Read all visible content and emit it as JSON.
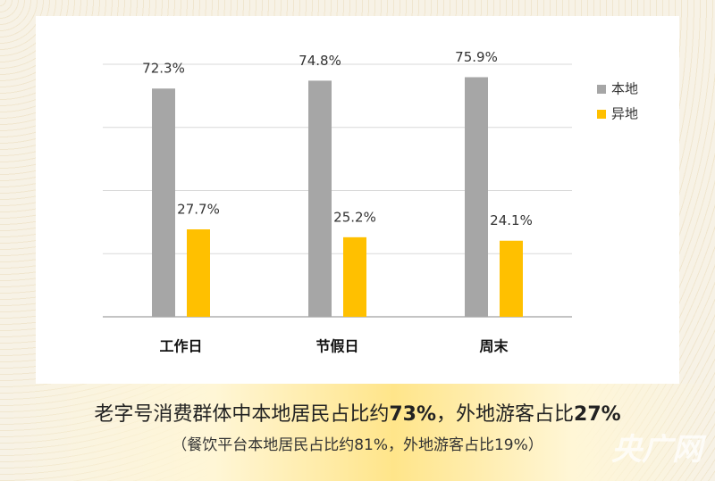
{
  "chart_data": {
    "type": "bar",
    "categories": [
      "工作日",
      "节假日",
      "周末"
    ],
    "series": [
      {
        "name": "本地",
        "color": "#a6a6a6",
        "values": [
          72.3,
          74.8,
          75.9
        ],
        "value_labels": [
          "72.3%",
          "74.8%",
          "75.9%"
        ]
      },
      {
        "name": "异地",
        "color": "#ffc000",
        "values": [
          27.7,
          25.2,
          24.1
        ],
        "value_labels": [
          "27.7%",
          "25.2%",
          "24.1%"
        ]
      }
    ],
    "ylim": [
      0,
      80
    ],
    "yticks": [
      0,
      20,
      40,
      60,
      80
    ],
    "grid": true,
    "legend": "right",
    "caption": [
      "老字号消费群体中本地居民占比约",
      "73%",
      "，外地游客占比",
      "27%"
    ],
    "subcaption": "（餐饮平台本地居民占比约81%，外地游客占比19%）",
    "watermark": "央广网"
  }
}
